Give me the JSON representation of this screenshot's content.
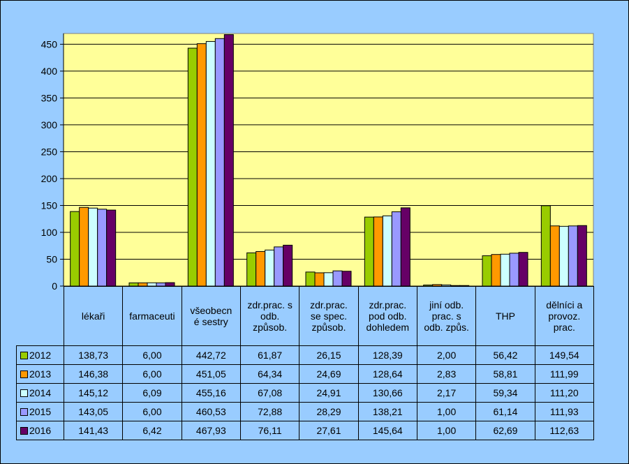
{
  "chart_data": {
    "type": "bar",
    "title": "",
    "xlabel": "",
    "ylabel": "",
    "ylim": [
      0,
      470
    ],
    "yticks": [
      0,
      50,
      100,
      150,
      200,
      250,
      300,
      350,
      400,
      450
    ],
    "grid": true,
    "legend": "table-left",
    "categories": [
      "lékaři",
      "farmaceuti",
      "všeobecné sestry",
      "zdr.prac. s odb. způsob.",
      "zdr.prac. se spec. způsob.",
      "zdr.prac. pod odb. dohledem",
      "jiní odb. prac. s odb. způs.",
      "THP",
      "dělníci a provoz. prac."
    ],
    "series": [
      {
        "name": "2012",
        "color": "#99cc00",
        "values": [
          138.73,
          6.0,
          442.72,
          61.87,
          26.15,
          128.39,
          2.0,
          56.42,
          149.54
        ],
        "labels": [
          "138,73",
          "6,00",
          "442,72",
          "61,87",
          "26,15",
          "128,39",
          "2,00",
          "56,42",
          "149,54"
        ]
      },
      {
        "name": "2013",
        "color": "#ff9900",
        "values": [
          146.38,
          6.0,
          451.05,
          64.34,
          24.69,
          128.64,
          2.83,
          58.81,
          111.99
        ],
        "labels": [
          "146,38",
          "6,00",
          "451,05",
          "64,34",
          "24,69",
          "128,64",
          "2,83",
          "58,81",
          "111,99"
        ]
      },
      {
        "name": "2014",
        "color": "#ccffff",
        "values": [
          145.12,
          6.09,
          455.16,
          67.08,
          24.91,
          130.66,
          2.17,
          59.34,
          111.2
        ],
        "labels": [
          "145,12",
          "6,09",
          "455,16",
          "67,08",
          "24,91",
          "130,66",
          "2,17",
          "59,34",
          "111,20"
        ]
      },
      {
        "name": "2015",
        "color": "#9999ff",
        "values": [
          143.05,
          6.0,
          460.53,
          72.88,
          28.29,
          138.21,
          1.0,
          61.14,
          111.93
        ],
        "labels": [
          "143,05",
          "6,00",
          "460,53",
          "72,88",
          "28,29",
          "138,21",
          "1,00",
          "61,14",
          "111,93"
        ]
      },
      {
        "name": "2016",
        "color": "#660066",
        "values": [
          141.43,
          6.42,
          467.93,
          76.11,
          27.61,
          145.64,
          1.0,
          62.69,
          112.63
        ],
        "labels": [
          "141,43",
          "6,42",
          "467,93",
          "76,11",
          "27,61",
          "145,64",
          "1,00",
          "62,69",
          "112,63"
        ]
      }
    ]
  },
  "colors": {
    "frame_background": "#99ccff",
    "plot_background": "#ffff99"
  }
}
